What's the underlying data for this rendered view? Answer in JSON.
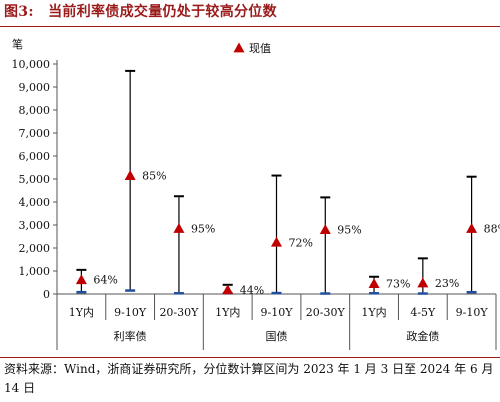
{
  "figure": {
    "title": "图3:　当前利率债成交量仍处于较高分位数",
    "source": "资料来源：Wind，浙商证券研究所，分位数计算区间为 2023 年 1 月 3 日至 2024 年 6 月 14 日"
  },
  "chart_data": {
    "type": "range-marker",
    "unit_label": "笔",
    "ylim": [
      0,
      10000
    ],
    "yticks": [
      0,
      1000,
      2000,
      3000,
      4000,
      5000,
      6000,
      7000,
      8000,
      9000,
      10000
    ],
    "ytick_labels": [
      "0",
      "1,000",
      "2,000",
      "3,000",
      "4,000",
      "5,000",
      "6,000",
      "7,000",
      "8,000",
      "9,000",
      "10,000"
    ],
    "legend": {
      "label": "现值",
      "position": "top-right",
      "color": "#c00000",
      "marker": "triangle"
    },
    "range_color": "#000000",
    "min_marker_color": "#1f4e9c",
    "groups": [
      "利率债",
      "国债",
      "政金债"
    ],
    "categories": [
      {
        "group": "利率债",
        "label": "1Y内",
        "min": 80,
        "max": 1050,
        "current": 620,
        "percentile": "64%"
      },
      {
        "group": "利率债",
        "label": "9-10Y",
        "min": 150,
        "max": 9700,
        "current": 5150,
        "percentile": "85%"
      },
      {
        "group": "利率债",
        "label": "20-30Y",
        "min": 30,
        "max": 4250,
        "current": 2850,
        "percentile": "95%"
      },
      {
        "group": "国债",
        "label": "1Y内",
        "min": 30,
        "max": 400,
        "current": 180,
        "percentile": "44%"
      },
      {
        "group": "国债",
        "label": "9-10Y",
        "min": 40,
        "max": 5150,
        "current": 2250,
        "percentile": "72%"
      },
      {
        "group": "国债",
        "label": "20-30Y",
        "min": 20,
        "max": 4200,
        "current": 2800,
        "percentile": "95%"
      },
      {
        "group": "政金债",
        "label": "1Y内",
        "min": 30,
        "max": 750,
        "current": 450,
        "percentile": "73%"
      },
      {
        "group": "政金债",
        "label": "4-5Y",
        "min": 20,
        "max": 1550,
        "current": 480,
        "percentile": "23%"
      },
      {
        "group": "政金债",
        "label": "9-10Y",
        "min": 80,
        "max": 5100,
        "current": 2850,
        "percentile": "88%"
      }
    ]
  }
}
